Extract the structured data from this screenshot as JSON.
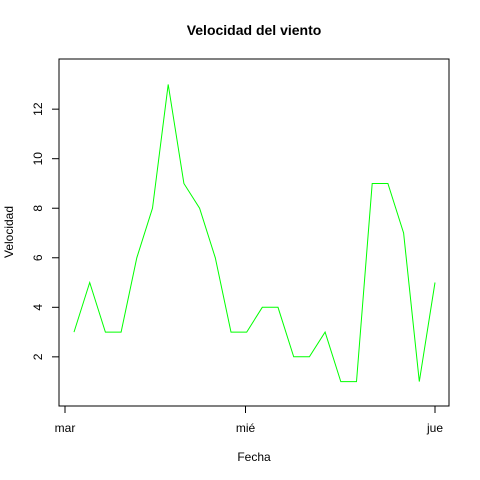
{
  "chart_data": {
    "type": "line",
    "title": "Velocidad del viento",
    "xlabel": "Fecha",
    "ylabel": "Velocidad",
    "x_tick_labels": [
      "mar",
      "mié",
      "jue"
    ],
    "y_ticks": [
      2,
      4,
      6,
      8,
      10,
      12
    ],
    "ylim": [
      0.5,
      13.5
    ],
    "grid": false,
    "series": [
      {
        "color": "#00ff00",
        "values": [
          3,
          5,
          3,
          3,
          6,
          8,
          13,
          9,
          8,
          6,
          3,
          3,
          4,
          4,
          2,
          2,
          3,
          1,
          1,
          9,
          9,
          7,
          1,
          5
        ]
      }
    ]
  }
}
